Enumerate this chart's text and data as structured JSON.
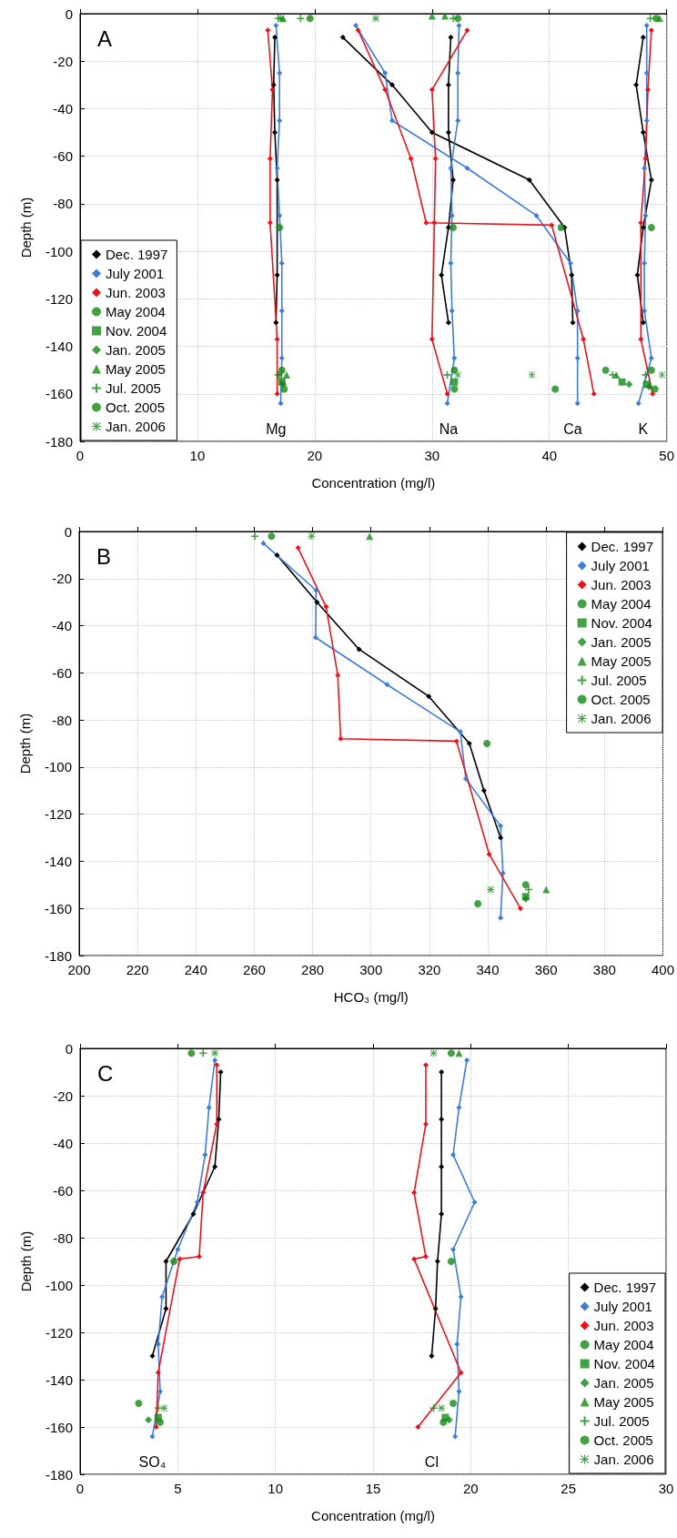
{
  "chart_data": [
    {
      "type": "line",
      "title": "A",
      "xlabel": "Concentration (mg/l)",
      "ylabel": "Depth (m)",
      "xlim": [
        0,
        50
      ],
      "xticks": [
        0,
        10,
        20,
        30,
        40,
        50
      ],
      "ylim": [
        -180,
        0
      ],
      "yticks": [
        -180,
        -160,
        -140,
        -120,
        -100,
        -80,
        -60,
        -40,
        -20,
        0
      ],
      "grid": true,
      "legend": "bottom left",
      "line_style": "solid",
      "annotations": [
        "Mg",
        "Na",
        "Ca",
        "K"
      ],
      "series": [
        {
          "name": "Dec. 1997",
          "marker": "diamond",
          "color": "#000000",
          "x": [
            16.6,
            16.5,
            16.6,
            16.8,
            16.8,
            16.7,
            null,
            31.6,
            31.4,
            31.4,
            31.8,
            31.4,
            30.8,
            31.4,
            null,
            22.4,
            26.6,
            30.0,
            38.3,
            41.3,
            41.9,
            42.0,
            null,
            48.0,
            47.4,
            48.0,
            48.7,
            48.0,
            47.5,
            48.0
          ],
          "values": [
            -10,
            -30,
            -50,
            -70,
            -110,
            -130,
            null,
            -10,
            -30,
            -50,
            -70,
            -90,
            -110,
            -130,
            null,
            -10,
            -30,
            -50,
            -70,
            -90,
            -110,
            -130,
            null,
            -10,
            -30,
            -50,
            -70,
            -90,
            -110,
            -130
          ]
        },
        {
          "name": "July 2001",
          "marker": "diamond",
          "color": "#3c7ddc",
          "x": [
            16.7,
            17.0,
            17.0,
            16.8,
            17.0,
            17.2,
            17.2,
            17.2,
            17.1,
            null,
            32.3,
            32.2,
            32.2,
            31.6,
            31.7,
            31.6,
            31.7,
            31.9,
            31.3,
            null,
            23.5,
            26.0,
            26.6,
            33.0,
            38.9,
            41.8,
            42.4,
            42.4,
            42.4,
            null,
            48.3,
            48.3,
            48.3,
            48.1,
            48.2,
            48.1,
            48.1,
            48.7,
            47.6
          ],
          "values": [
            -5,
            -25,
            -45,
            -65,
            -85,
            -105,
            -125,
            -145,
            -164,
            null,
            -5,
            -25,
            -45,
            -65,
            -85,
            -105,
            -125,
            -145,
            -164,
            null,
            -5,
            -25,
            -45,
            -65,
            -85,
            -105,
            -125,
            -145,
            -164,
            null,
            -5,
            -25,
            -45,
            -65,
            -85,
            -105,
            -125,
            -145,
            -164
          ]
        },
        {
          "name": "Jun. 2003",
          "marker": "diamond",
          "color": "#e8141c",
          "x": [
            16.0,
            16.4,
            16.2,
            16.2,
            16.8,
            16.8,
            null,
            33.0,
            30.0,
            30.3,
            30.2,
            30.0,
            31.3,
            null,
            23.7,
            26.0,
            28.2,
            29.5,
            40.2,
            42.9,
            43.8,
            null,
            48.7,
            48.4,
            48.2,
            47.8,
            47.8,
            48.8
          ],
          "values": [
            -7,
            -32,
            -61,
            -88,
            -137,
            -160,
            null,
            -7,
            -32,
            -61,
            -88,
            -137,
            -160,
            null,
            -7,
            -32,
            -61,
            -88,
            -89,
            -137,
            -160,
            null,
            -7,
            -32,
            -61,
            -88,
            -137,
            -160
          ]
        },
        {
          "name": "May 2004",
          "type": "scatter",
          "marker": "circle",
          "color": "#138a13",
          "x": [
            17.0,
            31.8,
            41.0,
            48.7,
            17.2,
            31.9,
            44.8,
            48.7
          ],
          "values": [
            -90,
            -90,
            -90,
            -90,
            -150,
            -150,
            -150,
            -150
          ]
        },
        {
          "name": "Nov. 2004",
          "type": "scatter",
          "marker": "square",
          "color": "#138a13",
          "x": [
            17.2,
            31.9,
            46.2,
            48.3
          ],
          "values": [
            -155,
            -155,
            -155,
            -156
          ]
        },
        {
          "name": "Jan. 2005",
          "type": "scatter",
          "marker": "diamond",
          "color": "#138a13",
          "x": [
            17.3,
            46.8,
            48.5
          ],
          "values": [
            -156,
            -156,
            -157
          ]
        },
        {
          "name": "May 2005",
          "type": "scatter",
          "marker": "triangle",
          "color": "#138a13",
          "x": [
            17.3,
            30.0,
            31.1,
            49.4,
            17.6,
            45.7
          ],
          "values": [
            -2,
            -1,
            -1,
            -2,
            -152,
            -152
          ]
        },
        {
          "name": "Jul. 2005",
          "type": "scatter",
          "marker": "cross",
          "color": "#138a13",
          "x": [
            16.9,
            18.8,
            31.8,
            48.6,
            16.9,
            31.3,
            45.4,
            48.2
          ],
          "values": [
            -2,
            -2,
            -2,
            -2,
            -152,
            -152,
            -152,
            -152
          ]
        },
        {
          "name": "Oct. 2005",
          "type": "scatter",
          "marker": "circle",
          "color": "#138a13",
          "x": [
            19.6,
            32.2,
            49.1,
            17.4,
            31.9,
            40.5,
            49.0
          ],
          "values": [
            -2,
            -2,
            -2,
            -158,
            -158,
            -158,
            -158
          ]
        },
        {
          "name": "Jan. 2006",
          "type": "scatter",
          "marker": "star",
          "color": "#138a13",
          "x": [
            17.1,
            25.2,
            17.0,
            32.2,
            38.5,
            49.6
          ],
          "values": [
            -2,
            -2,
            -152,
            -152,
            -152,
            -152
          ]
        }
      ]
    },
    {
      "type": "line",
      "title": "B",
      "xlabel": "HCO₃ (mg/l)",
      "ylabel": "Depth (m)",
      "xlim": [
        200,
        400
      ],
      "xticks": [
        200,
        220,
        240,
        260,
        280,
        300,
        320,
        340,
        360,
        380,
        400
      ],
      "ylim": [
        -180,
        0
      ],
      "yticks": [
        -180,
        -160,
        -140,
        -120,
        -100,
        -80,
        -60,
        -40,
        -20,
        0
      ],
      "grid": true,
      "legend": "top right",
      "line_style": "solid",
      "series": [
        {
          "name": "Dec. 1997",
          "marker": "diamond",
          "color": "#000000",
          "x": [
            267.8,
            281.5,
            295.9,
            319.8,
            333.7,
            338.7,
            344.4
          ],
          "values": [
            -10,
            -30,
            -50,
            -70,
            -90,
            -110,
            -130
          ]
        },
        {
          "name": "July 2001",
          "marker": "diamond",
          "color": "#3c7ddc",
          "x": [
            263.1,
            281.2,
            281.0,
            305.5,
            330.6,
            332.5,
            344.4,
            345.2,
            344.4
          ],
          "values": [
            -5,
            -25,
            -45,
            -65,
            -85,
            -105,
            -125,
            -145,
            -164
          ]
        },
        {
          "name": "Jun. 2003",
          "marker": "diamond",
          "color": "#e8141c",
          "x": [
            275.0,
            284.6,
            288.6,
            289.6,
            329.3,
            340.5,
            351.2
          ],
          "values": [
            -7,
            -32,
            -61,
            -88,
            -89,
            -137,
            -160
          ]
        },
        {
          "name": "May 2004",
          "type": "scatter",
          "marker": "circle",
          "color": "#138a13",
          "x": [
            339.7,
            353.0
          ],
          "values": [
            -90,
            -150
          ]
        },
        {
          "name": "Nov. 2004",
          "type": "scatter",
          "marker": "square",
          "color": "#138a13",
          "x": [
            353.0
          ],
          "values": [
            -155
          ]
        },
        {
          "name": "Jan. 2005",
          "type": "scatter",
          "marker": "diamond",
          "color": "#138a13",
          "x": [
            353.0
          ],
          "values": [
            -156
          ]
        },
        {
          "name": "May 2005",
          "type": "scatter",
          "marker": "triangle",
          "color": "#138a13",
          "x": [
            299.5,
            360.0
          ],
          "values": [
            -2,
            -152
          ]
        },
        {
          "name": "Jul. 2005",
          "type": "scatter",
          "marker": "cross",
          "color": "#138a13",
          "x": [
            260.2,
            354.0
          ],
          "values": [
            -2,
            -152
          ]
        },
        {
          "name": "Oct. 2005",
          "type": "scatter",
          "marker": "circle",
          "color": "#138a13",
          "x": [
            265.9,
            336.6
          ],
          "values": [
            -2,
            -158
          ]
        },
        {
          "name": "Jan. 2006",
          "type": "scatter",
          "marker": "star",
          "color": "#138a13",
          "x": [
            279.6,
            341.0
          ],
          "values": [
            -2,
            -152
          ]
        }
      ]
    },
    {
      "type": "line",
      "title": "C",
      "xlabel": "Concentration (mg/l)",
      "ylabel": "Depth (m)",
      "xlim": [
        0,
        30
      ],
      "xticks": [
        0,
        5,
        10,
        15,
        20,
        25,
        30
      ],
      "ylim": [
        -180,
        0
      ],
      "yticks": [
        -180,
        -160,
        -140,
        -120,
        -100,
        -80,
        -60,
        -40,
        -20,
        0
      ],
      "grid": true,
      "legend": "bottom right",
      "line_style": "solid",
      "annotations": [
        "SO₄",
        "Cl"
      ],
      "series": [
        {
          "name": "Dec. 1997",
          "marker": "diamond",
          "color": "#000000",
          "x": [
            7.2,
            7.1,
            6.9,
            5.8,
            4.4,
            4.4,
            3.7,
            null,
            18.5,
            18.5,
            18.5,
            18.5,
            18.3,
            18.2,
            18.0
          ],
          "values": [
            -10,
            -30,
            -50,
            -70,
            -90,
            -110,
            -130,
            null,
            -10,
            -30,
            -50,
            -70,
            -90,
            -110,
            -130
          ]
        },
        {
          "name": "July 2001",
          "marker": "diamond",
          "color": "#3c7ddc",
          "x": [
            6.9,
            6.6,
            6.4,
            6.0,
            5.0,
            4.2,
            4.0,
            4.1,
            3.7,
            null,
            19.8,
            19.4,
            19.1,
            20.2,
            19.1,
            19.5,
            19.3,
            19.4,
            19.2
          ],
          "values": [
            -5,
            -25,
            -45,
            -65,
            -85,
            -105,
            -125,
            -145,
            -164,
            null,
            -5,
            -25,
            -45,
            -65,
            -85,
            -105,
            -125,
            -145,
            -164
          ]
        },
        {
          "name": "Jun. 2003",
          "marker": "diamond",
          "color": "#e8141c",
          "x": [
            7.0,
            7.0,
            6.3,
            6.1,
            5.1,
            4.0,
            3.9,
            null,
            17.7,
            17.7,
            17.1,
            17.7,
            17.1,
            19.5,
            17.3
          ],
          "values": [
            -7,
            -32,
            -61,
            -88,
            -89,
            -137,
            -160,
            null,
            -7,
            -32,
            -61,
            -88,
            -89,
            -137,
            -160
          ]
        },
        {
          "name": "May 2004",
          "type": "scatter",
          "marker": "circle",
          "color": "#138a13",
          "x": [
            4.8,
            3.0,
            19.0,
            19.1
          ],
          "values": [
            -90,
            -150,
            -90,
            -150
          ]
        },
        {
          "name": "Nov. 2004",
          "type": "scatter",
          "marker": "square",
          "color": "#138a13",
          "x": [
            4.0,
            18.7
          ],
          "values": [
            -156,
            -156
          ]
        },
        {
          "name": "Jan. 2005",
          "type": "scatter",
          "marker": "diamond",
          "color": "#138a13",
          "x": [
            3.5,
            18.9
          ],
          "values": [
            -157,
            -157
          ]
        },
        {
          "name": "May 2005",
          "type": "scatter",
          "marker": "triangle",
          "color": "#138a13",
          "x": [
            19.4
          ],
          "values": [
            -2
          ]
        },
        {
          "name": "Jul. 2005",
          "type": "scatter",
          "marker": "cross",
          "color": "#138a13",
          "x": [
            6.3,
            4.0,
            18.1
          ],
          "values": [
            -2,
            -152,
            -152
          ]
        },
        {
          "name": "Oct. 2005",
          "type": "scatter",
          "marker": "circle",
          "color": "#138a13",
          "x": [
            5.7,
            19.0,
            4.1,
            18.6
          ],
          "values": [
            -2,
            -2,
            -158,
            -158
          ]
        },
        {
          "name": "Jan. 2006",
          "type": "scatter",
          "marker": "star",
          "color": "#138a13",
          "x": [
            6.9,
            18.1,
            4.3,
            18.5
          ],
          "values": [
            -2,
            -2,
            -152,
            -152
          ]
        }
      ]
    }
  ]
}
